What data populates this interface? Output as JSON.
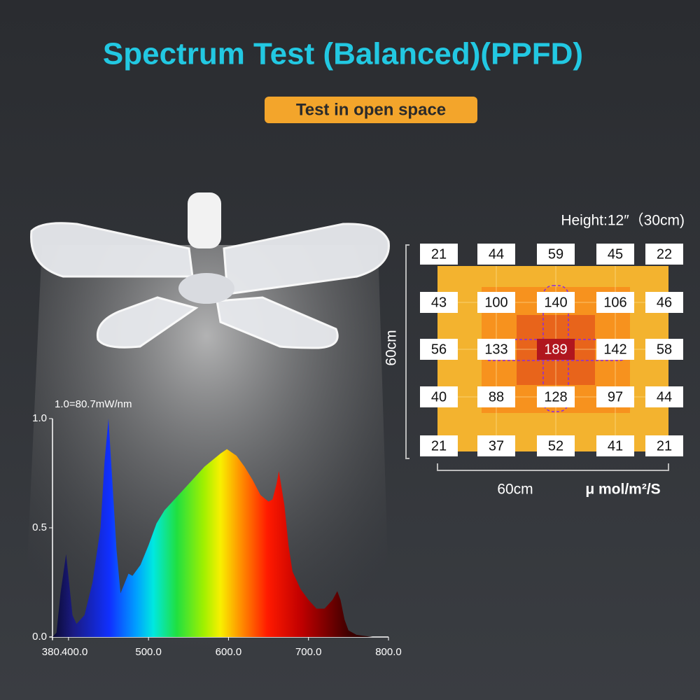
{
  "title": "Spectrum Test (Balanced)(PPFD)",
  "badge": "Test in open space",
  "ppfd": {
    "height": "Height:12″（30cm)",
    "side_label": "60cm",
    "bottom_label": "60cm",
    "unit": "μ mol/m²/S",
    "rows": [
      [
        21,
        44,
        59,
        45,
        22
      ],
      [
        43,
        100,
        140,
        106,
        46
      ],
      [
        56,
        133,
        189,
        142,
        58
      ],
      [
        40,
        88,
        128,
        97,
        44
      ],
      [
        21,
        37,
        52,
        41,
        21
      ]
    ]
  },
  "chart_data": {
    "type": "area",
    "annotation": "1.0=80.7mW/nm",
    "x": [
      380,
      385,
      390,
      397,
      405,
      410,
      420,
      430,
      440,
      445,
      450,
      455,
      460,
      465,
      475,
      480,
      490,
      500,
      510,
      520,
      530,
      540,
      550,
      560,
      570,
      580,
      590,
      598,
      610,
      620,
      630,
      640,
      650,
      655,
      660,
      663,
      670,
      675,
      680,
      690,
      700,
      710,
      720,
      730,
      736,
      740,
      745,
      750,
      760,
      780,
      800
    ],
    "values": [
      0,
      0.02,
      0.2,
      0.38,
      0.1,
      0.06,
      0.1,
      0.25,
      0.5,
      0.8,
      1.0,
      0.7,
      0.4,
      0.2,
      0.29,
      0.28,
      0.33,
      0.42,
      0.52,
      0.58,
      0.62,
      0.66,
      0.7,
      0.74,
      0.78,
      0.81,
      0.84,
      0.86,
      0.83,
      0.78,
      0.72,
      0.65,
      0.62,
      0.63,
      0.7,
      0.76,
      0.6,
      0.42,
      0.3,
      0.22,
      0.17,
      0.13,
      0.13,
      0.17,
      0.21,
      0.17,
      0.08,
      0.03,
      0.01,
      0,
      0
    ],
    "xlim": [
      380,
      800
    ],
    "xticks": [
      {
        "value": 380,
        "label": "380."
      },
      {
        "value": 400,
        "label": "400.0"
      },
      {
        "value": 500,
        "label": "500.0"
      },
      {
        "value": 600,
        "label": "600.0"
      },
      {
        "value": 700,
        "label": "700.0"
      },
      {
        "value": 800,
        "label": "800.0"
      }
    ],
    "ylim": [
      0,
      1.0
    ],
    "yticks": [
      {
        "value": 0,
        "label": "0.0"
      },
      0.5,
      {
        "value": 1.0,
        "label": "1.0"
      }
    ]
  }
}
